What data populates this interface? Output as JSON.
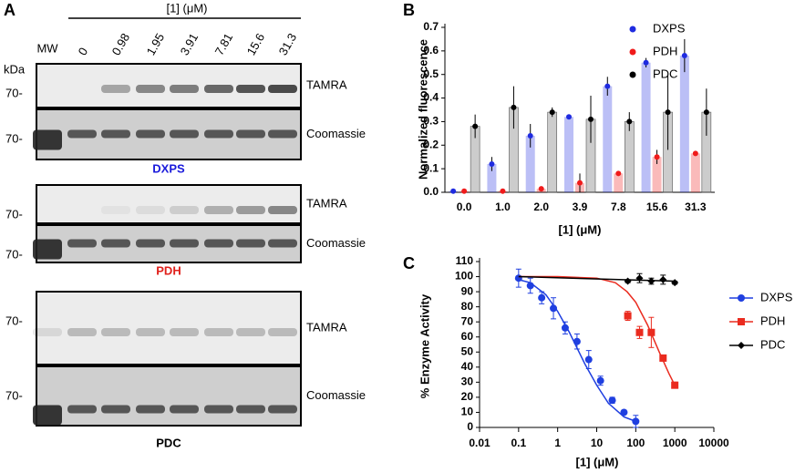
{
  "gel": {
    "panel": "A",
    "header": "[1] (μM)",
    "lanes": [
      "MW",
      "0",
      "0.98",
      "1.95",
      "3.91",
      "7.81",
      "15.6",
      "31.3"
    ],
    "unit": "kDa",
    "marker": "70-",
    "blots": [
      {
        "name": "DXPS",
        "color": "#1a1adb",
        "rows": [
          "TAMRA",
          "Coomassie"
        ]
      },
      {
        "name": "PDH",
        "color": "#e0201b",
        "rows": [
          "TAMRA",
          "Coomassie"
        ]
      },
      {
        "name": "PDC",
        "color": "#000000",
        "rows": [
          "TAMRA",
          "Coomassie"
        ]
      }
    ]
  },
  "chart_data": [
    {
      "type": "bar",
      "panel": "B",
      "y_label": "Normalized fluorescence",
      "x_label": "[1] (μM)",
      "categories": [
        "0.0",
        "1.0",
        "2.0",
        "3.9",
        "7.8",
        "15.6",
        "31.3"
      ],
      "ylim": [
        0,
        0.7
      ],
      "yticks": [
        {
          "value": 0,
          "label": "0.0"
        },
        0.1,
        0.2,
        0.3,
        0.4,
        0.5,
        0.6,
        0.7
      ],
      "series": [
        {
          "name": "DXPS",
          "color": "#1f2be0",
          "values": [
            0.005,
            0.12,
            0.24,
            0.32,
            0.45,
            0.55,
            0.58
          ],
          "errors": [
            0.005,
            0.03,
            0.05,
            0.01,
            0.04,
            0.02,
            0.07
          ]
        },
        {
          "name": "PDH",
          "color": "#f01b1b",
          "values": [
            0.005,
            0.005,
            0.015,
            0.04,
            0.08,
            0.15,
            0.165
          ],
          "errors": [
            0.003,
            0.003,
            0.005,
            0.04,
            0.01,
            0.03,
            0.01
          ]
        },
        {
          "name": "PDC",
          "color": "#000000",
          "values": [
            0.28,
            0.36,
            0.34,
            0.31,
            0.3,
            0.34,
            0.34
          ],
          "errors": [
            0.05,
            0.09,
            0.02,
            0.1,
            0.04,
            0.16,
            0.1
          ]
        }
      ]
    },
    {
      "type": "scatter",
      "panel": "C",
      "y_label": "% Enzyme Activity",
      "x_label": "[1] (μM)",
      "xscale": "log",
      "xlim": [
        0.01,
        10000
      ],
      "xticks": [
        0.01,
        0.1,
        1,
        10,
        100,
        1000,
        10000
      ],
      "ylim": [
        0,
        110
      ],
      "yticks": [
        0,
        10,
        20,
        30,
        40,
        50,
        60,
        70,
        80,
        90,
        100,
        110
      ],
      "series": [
        {
          "name": "DXPS",
          "color": "#1f3fe0",
          "marker": "circle",
          "x": [
            0.1,
            0.2,
            0.39,
            0.78,
            1.56,
            3.13,
            6.25,
            12.5,
            25,
            50,
            100
          ],
          "values": [
            99,
            94,
            86,
            79,
            66,
            57,
            45,
            31,
            18,
            10,
            4
          ],
          "errors": [
            6,
            5,
            4,
            7,
            4,
            5,
            6,
            3,
            2,
            1,
            4
          ],
          "fit": {
            "x": [
              0.1,
              0.2,
              0.5,
              1,
              2,
              5,
              10,
              20,
              50,
              100
            ],
            "values": [
              98,
              96,
              88,
              77,
              63,
              42,
              28,
              16,
              7,
              4
            ]
          }
        },
        {
          "name": "PDH",
          "color": "#ea2b1f",
          "marker": "square",
          "x": [
            62.5,
            125,
            250,
            500,
            1000
          ],
          "values": [
            74,
            63,
            63,
            46,
            28
          ],
          "errors": [
            3,
            4,
            10,
            2,
            2
          ],
          "fit": {
            "x": [
              0.1,
              1,
              10,
              30,
              60,
              100,
              200,
              400,
              700,
              1000
            ],
            "values": [
              100,
              100,
              99,
              96,
              90,
              83,
              68,
              50,
              36,
              28
            ]
          }
        },
        {
          "name": "PDC",
          "color": "#000000",
          "marker": "diamond",
          "x": [
            62.5,
            125,
            250,
            500,
            1000
          ],
          "values": [
            97,
            99,
            97,
            98,
            96
          ],
          "errors": [
            1,
            3,
            2,
            3,
            1
          ],
          "fit": {
            "x": [
              0.1,
              1000
            ],
            "values": [
              100,
              97
            ]
          }
        }
      ]
    }
  ]
}
